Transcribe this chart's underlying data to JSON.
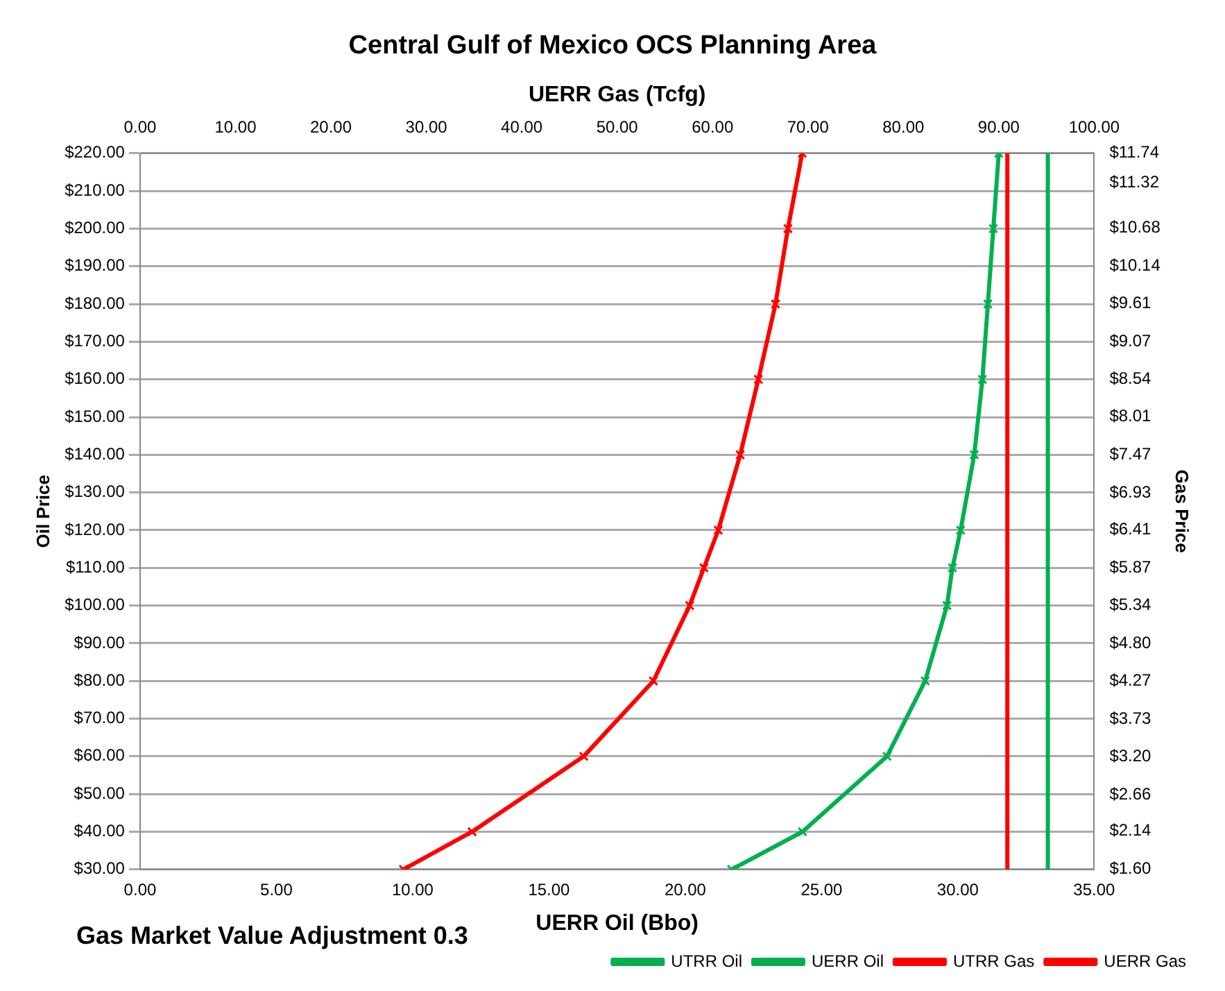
{
  "chart_data": {
    "type": "line",
    "title": "Central Gulf of Mexico OCS Planning Area",
    "xlabel": "UERR Oil (Bbo)",
    "x2label": "UERR Gas (Tcfg)",
    "ylabel": "Oil Price",
    "y2label": "Gas Price",
    "annotations": [
      "Gas Market Value Adjustment 0.3"
    ],
    "xlim": [
      0,
      35
    ],
    "xticks": [
      {
        "value": 0,
        "label": "0.00"
      },
      {
        "value": 5,
        "label": "5.00"
      },
      {
        "value": 10,
        "label": "10.00"
      },
      {
        "value": 15,
        "label": "15.00"
      },
      {
        "value": 20,
        "label": "20.00"
      },
      {
        "value": 25,
        "label": "25.00"
      },
      {
        "value": 30,
        "label": "30.00"
      },
      {
        "value": 35,
        "label": "35.00"
      }
    ],
    "x2lim": [
      0,
      100
    ],
    "x2ticks": [
      {
        "value": 0,
        "label": "0.00"
      },
      {
        "value": 10,
        "label": "10.00"
      },
      {
        "value": 20,
        "label": "20.00"
      },
      {
        "value": 30,
        "label": "30.00"
      },
      {
        "value": 40,
        "label": "40.00"
      },
      {
        "value": 50,
        "label": "50.00"
      },
      {
        "value": 60,
        "label": "60.00"
      },
      {
        "value": 70,
        "label": "70.00"
      },
      {
        "value": 80,
        "label": "80.00"
      },
      {
        "value": 90,
        "label": "90.00"
      },
      {
        "value": 100,
        "label": "100.00"
      }
    ],
    "ylim": [
      30,
      220
    ],
    "yticks": [
      {
        "value": 30,
        "label": "$30.00"
      },
      {
        "value": 40,
        "label": "$40.00"
      },
      {
        "value": 50,
        "label": "$50.00"
      },
      {
        "value": 60,
        "label": "$60.00"
      },
      {
        "value": 70,
        "label": "$70.00"
      },
      {
        "value": 80,
        "label": "$80.00"
      },
      {
        "value": 90,
        "label": "$90.00"
      },
      {
        "value": 100,
        "label": "$100.00"
      },
      {
        "value": 110,
        "label": "$110.00"
      },
      {
        "value": 120,
        "label": "$120.00"
      },
      {
        "value": 130,
        "label": "$130.00"
      },
      {
        "value": 140,
        "label": "$140.00"
      },
      {
        "value": 150,
        "label": "$150.00"
      },
      {
        "value": 160,
        "label": "$160.00"
      },
      {
        "value": 170,
        "label": "$170.00"
      },
      {
        "value": 180,
        "label": "$180.00"
      },
      {
        "value": 190,
        "label": "$190.00"
      },
      {
        "value": 200,
        "label": "$200.00"
      },
      {
        "value": 210,
        "label": "$210.00"
      },
      {
        "value": 220,
        "label": "$220.00"
      }
    ],
    "y2lim": [
      1.6,
      11.74
    ],
    "y2ticks": [
      {
        "value": 1.6,
        "label": "$1.60"
      },
      {
        "value": 2.14,
        "label": "$2.14"
      },
      {
        "value": 2.66,
        "label": "$2.66"
      },
      {
        "value": 3.2,
        "label": "$3.20"
      },
      {
        "value": 3.73,
        "label": "$3.73"
      },
      {
        "value": 4.27,
        "label": "$4.27"
      },
      {
        "value": 4.8,
        "label": "$4.80"
      },
      {
        "value": 5.34,
        "label": "$5.34"
      },
      {
        "value": 5.87,
        "label": "$5.87"
      },
      {
        "value": 6.41,
        "label": "$6.41"
      },
      {
        "value": 6.93,
        "label": "$6.93"
      },
      {
        "value": 7.47,
        "label": "$7.47"
      },
      {
        "value": 8.01,
        "label": "$8.01"
      },
      {
        "value": 8.54,
        "label": "$8.54"
      },
      {
        "value": 9.07,
        "label": "$9.07"
      },
      {
        "value": 9.61,
        "label": "$9.61"
      },
      {
        "value": 10.14,
        "label": "$10.14"
      },
      {
        "value": 10.68,
        "label": "$10.68"
      },
      {
        "value": 11.32,
        "label": "$11.32"
      },
      {
        "value": 11.74,
        "label": "$11.74"
      }
    ],
    "grid": "y",
    "legend": "bottom right",
    "series": [
      {
        "name": "UTRR Oil",
        "color": "#00b050",
        "marker": "none",
        "x": [
          33.3,
          33.3
        ],
        "values": [
          30,
          220
        ]
      },
      {
        "name": "UERR Oil",
        "color": "#00b050",
        "marker": "cross",
        "x": [
          21.7,
          24.3,
          27.4,
          28.8,
          29.6,
          29.8,
          30.1,
          30.6,
          30.9,
          31.1,
          31.3,
          31.5
        ],
        "values": [
          30,
          40,
          60,
          80,
          100,
          110,
          120,
          140,
          160,
          180,
          200,
          220
        ]
      },
      {
        "name": "UTRR Gas",
        "color": "#ff0000",
        "marker": "none",
        "axis": "x2",
        "x": [
          90.9,
          90.9
        ],
        "values": [
          30,
          220
        ]
      },
      {
        "name": "UERR Gas",
        "color": "#ff0000",
        "marker": "cross",
        "axis": "x2",
        "x": [
          27.6,
          34.8,
          46.5,
          53.8,
          57.6,
          59.1,
          60.6,
          62.9,
          64.8,
          66.6,
          67.9,
          69.4
        ],
        "values": [
          30,
          40,
          60,
          80,
          100,
          110,
          120,
          140,
          160,
          180,
          200,
          220
        ]
      }
    ]
  }
}
